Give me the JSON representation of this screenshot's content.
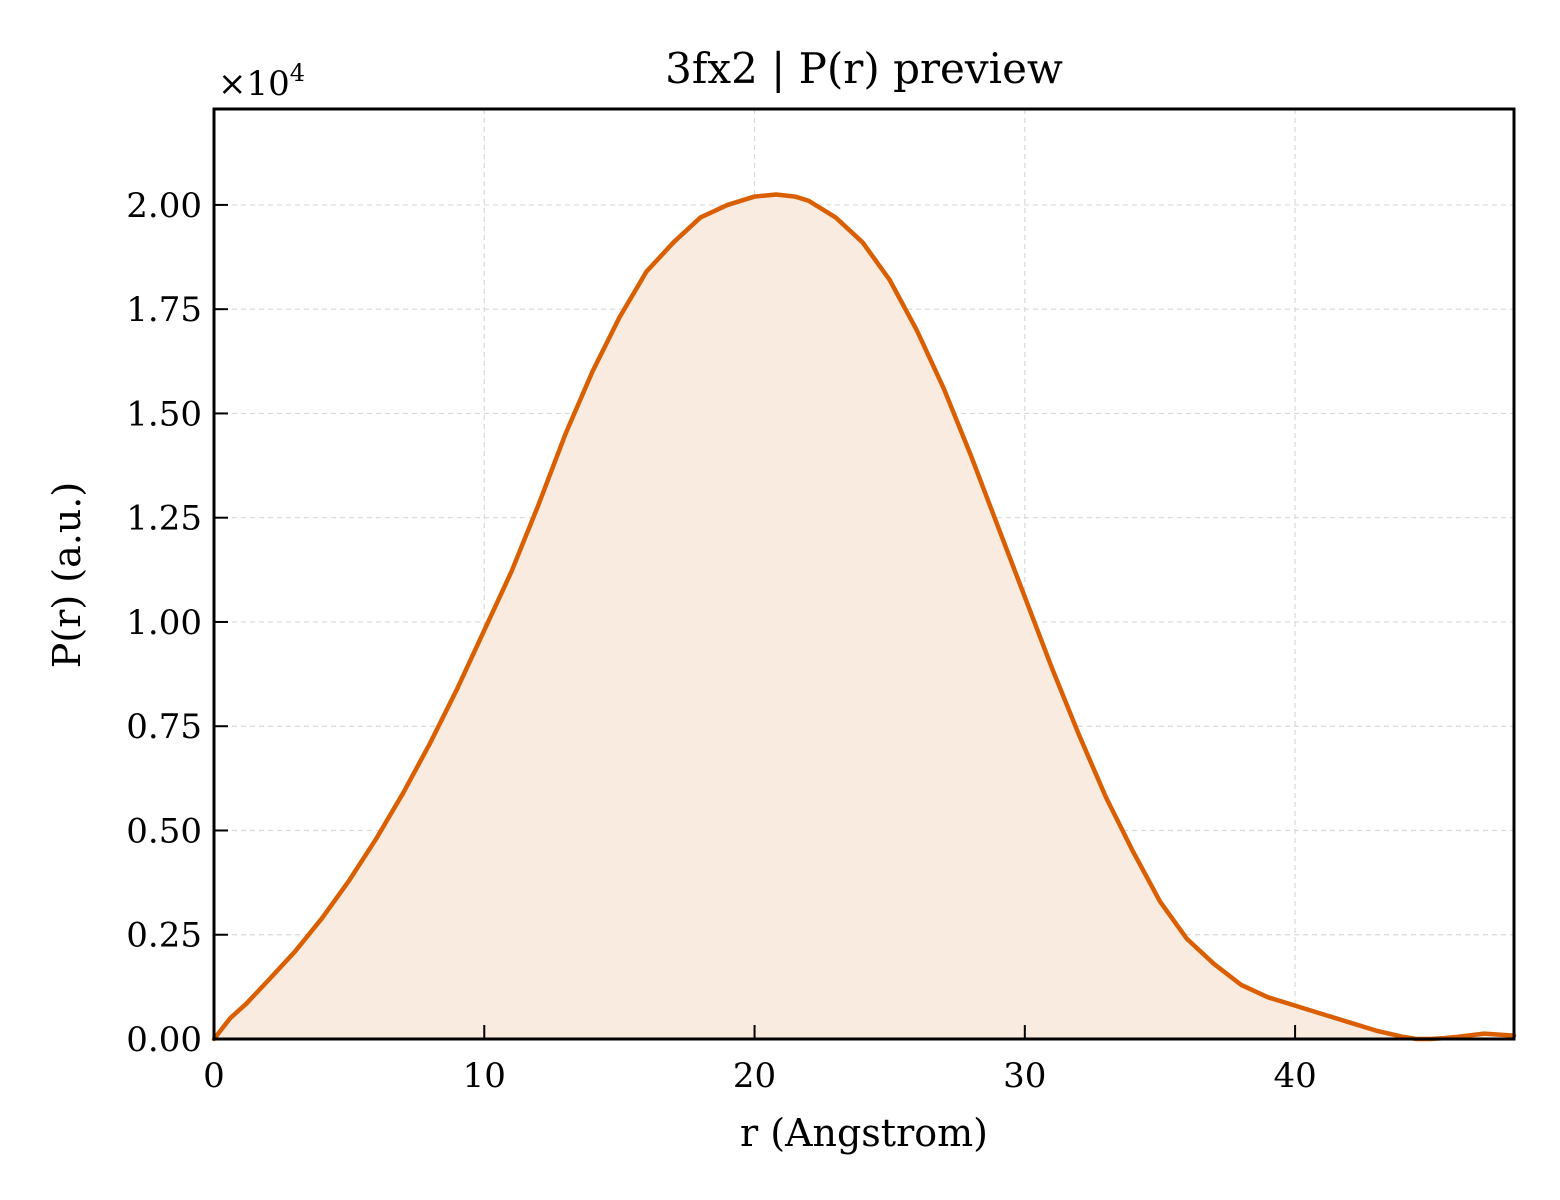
{
  "chart_data": {
    "type": "area",
    "title": "3fx2 | P(r) preview",
    "xlabel": "r (Angstrom)",
    "ylabel": "P(r) (a.u.)",
    "y_multiplier_base": "×10",
    "y_multiplier_exp": "4",
    "xlim": [
      0,
      48.1
    ],
    "ylim": [
      0,
      2.23
    ],
    "x_ticks": [
      0,
      10,
      20,
      30,
      40
    ],
    "x_tick_labels": [
      "0",
      "10",
      "20",
      "30",
      "40"
    ],
    "y_ticks": [
      0,
      0.25,
      0.5,
      0.75,
      1.0,
      1.25,
      1.5,
      1.75,
      2.0
    ],
    "y_tick_labels": [
      "0.00",
      "0.25",
      "0.50",
      "0.75",
      "1.00",
      "1.25",
      "1.50",
      "1.75",
      "2.00"
    ],
    "grid": true,
    "line_color": "#d95f02",
    "fill_color": "#f9ebe0",
    "series": [
      {
        "x": [
          0,
          0.6,
          1.2,
          2,
          3,
          4,
          5,
          6,
          7,
          8,
          9,
          10,
          11,
          12,
          13,
          14,
          15,
          16,
          17,
          18,
          19,
          20,
          20.8,
          21.5,
          22,
          23,
          24,
          25,
          26,
          27,
          28,
          29,
          30,
          31,
          32,
          33,
          34,
          35,
          36,
          37,
          38,
          39,
          40,
          41,
          42,
          43,
          44,
          44.5,
          45,
          45.5,
          46,
          47,
          48.1
        ],
        "y": [
          0,
          0.05,
          0.085,
          0.14,
          0.21,
          0.29,
          0.38,
          0.48,
          0.59,
          0.71,
          0.84,
          0.98,
          1.12,
          1.28,
          1.45,
          1.6,
          1.73,
          1.84,
          1.91,
          1.97,
          2.0,
          2.02,
          2.025,
          2.02,
          2.01,
          1.97,
          1.91,
          1.82,
          1.7,
          1.56,
          1.4,
          1.23,
          1.06,
          0.89,
          0.73,
          0.58,
          0.45,
          0.33,
          0.24,
          0.18,
          0.13,
          0.1,
          0.08,
          0.06,
          0.04,
          0.02,
          0.005,
          0.0,
          0.0,
          0.002,
          0.005,
          0.013,
          0.008
        ]
      }
    ]
  }
}
